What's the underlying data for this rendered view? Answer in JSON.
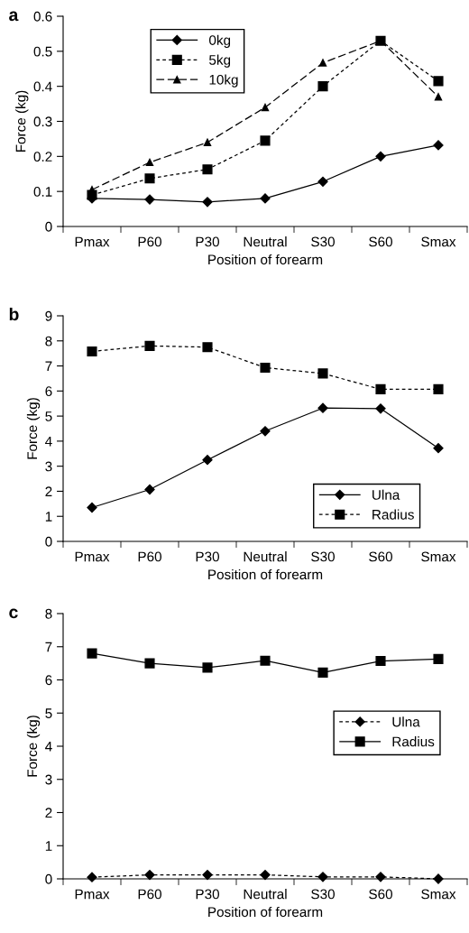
{
  "chart_data": [
    {
      "type": "line",
      "title": "a",
      "xlabel": "Position of forearm",
      "ylabel": "Force (kg)",
      "categories": [
        "Pmax",
        "P60",
        "P30",
        "Neutral",
        "S30",
        "S60",
        "Smax"
      ],
      "ylim": [
        0,
        0.6
      ],
      "yticks": [
        0,
        0.1,
        0.2,
        0.3,
        0.4,
        0.5,
        0.6
      ],
      "legend": "top left",
      "grid": false,
      "series": [
        {
          "name": "0kg",
          "color": "#000000",
          "marker": "diamond",
          "line_style": "solid",
          "values": [
            0.08,
            0.077,
            0.07,
            0.08,
            0.128,
            0.2,
            0.232
          ]
        },
        {
          "name": "5kg",
          "color": "#000000",
          "marker": "square",
          "line_style": "dotted",
          "values": [
            0.09,
            0.137,
            0.163,
            0.245,
            0.4,
            0.53,
            0.415
          ]
        },
        {
          "name": "10kg",
          "color": "#000000",
          "marker": "triangle",
          "line_style": "dashed",
          "values": [
            0.105,
            0.183,
            0.24,
            0.34,
            0.467,
            0.53,
            0.37
          ]
        }
      ]
    },
    {
      "type": "line",
      "title": "b",
      "xlabel": "Position of forearm",
      "ylabel": "Force (kg)",
      "categories": [
        "Pmax",
        "P60",
        "P30",
        "Neutral",
        "S30",
        "S60",
        "Smax"
      ],
      "ylim": [
        0,
        9
      ],
      "yticks": [
        0,
        1,
        2,
        3,
        4,
        5,
        6,
        7,
        8,
        9
      ],
      "legend": "bottom right",
      "grid": false,
      "series": [
        {
          "name": "Ulna",
          "color": "#000000",
          "marker": "diamond",
          "line_style": "solid",
          "values": [
            1.35,
            2.07,
            3.25,
            4.4,
            5.32,
            5.3,
            3.72
          ]
        },
        {
          "name": "Radius",
          "color": "#000000",
          "marker": "square",
          "line_style": "dotted",
          "values": [
            7.58,
            7.8,
            7.75,
            6.93,
            6.7,
            6.07,
            6.07
          ]
        }
      ]
    },
    {
      "type": "line",
      "title": "c",
      "xlabel": "Position of forearm",
      "ylabel": "Force (kg)",
      "categories": [
        "Pmax",
        "P60",
        "P30",
        "Neutral",
        "S30",
        "S60",
        "Smax"
      ],
      "ylim": [
        0,
        8
      ],
      "yticks": [
        0,
        1,
        2,
        3,
        4,
        5,
        6,
        7,
        8
      ],
      "legend": "right",
      "grid": false,
      "series": [
        {
          "name": "Ulna",
          "color": "#000000",
          "marker": "diamond",
          "line_style": "dotted",
          "values": [
            0.05,
            0.12,
            0.12,
            0.12,
            0.06,
            0.06,
            0.0
          ]
        },
        {
          "name": "Radius",
          "color": "#000000",
          "marker": "square",
          "line_style": "solid",
          "values": [
            6.8,
            6.5,
            6.37,
            6.58,
            6.22,
            6.57,
            6.63
          ]
        }
      ]
    }
  ]
}
